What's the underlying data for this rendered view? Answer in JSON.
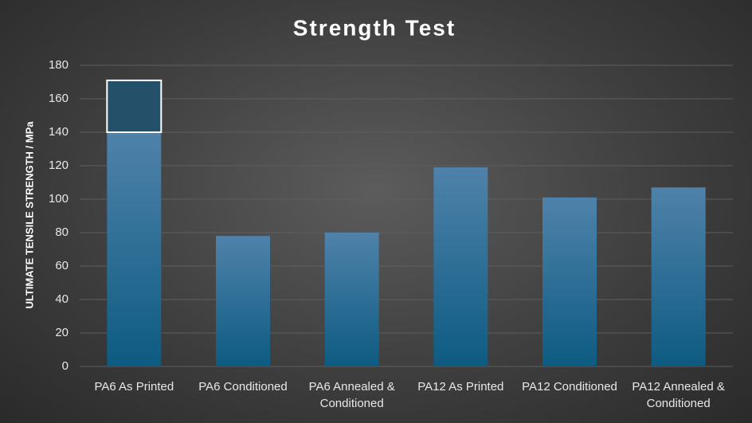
{
  "chart_data": {
    "type": "bar",
    "title": "Strength Test",
    "y_label": "ULTIMATE TENSILE STRENGTH / MPa",
    "categories": [
      "PA6 As Printed",
      "PA6 Conditioned",
      "PA6 Annealed & Conditioned",
      "PA12 As Printed",
      "PA12 Conditioned",
      "PA12 Annealed & Conditioned"
    ],
    "stacked": true,
    "series": [
      {
        "color": "#1f6f9a",
        "values": [
          140,
          78,
          80,
          119,
          101,
          107
        ]
      },
      {
        "color": "#24506a",
        "values": [
          31,
          null,
          null,
          null,
          null,
          null
        ]
      }
    ],
    "ylim": [
      0,
      180
    ],
    "yticks": [
      0,
      20,
      40,
      60,
      80,
      100,
      120,
      140,
      160,
      180
    ],
    "grid": true
  }
}
